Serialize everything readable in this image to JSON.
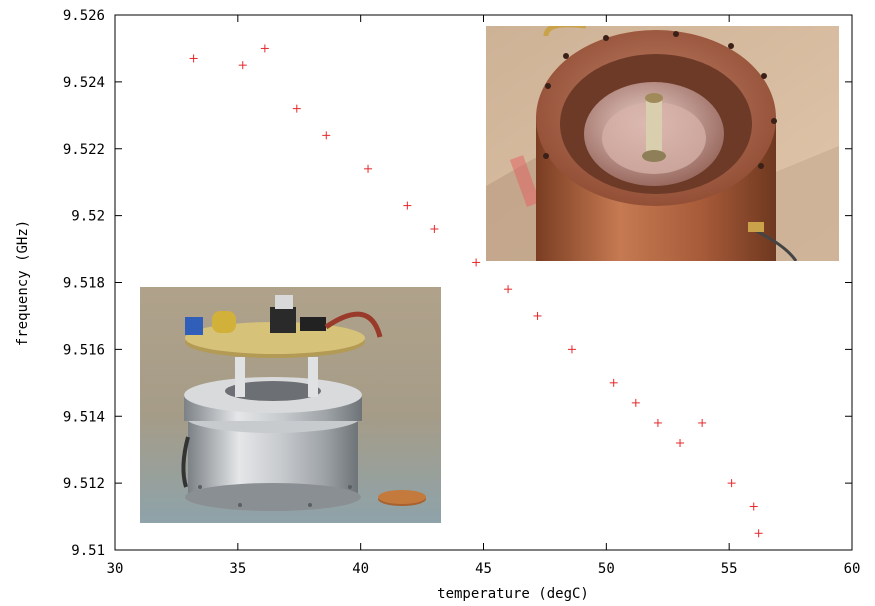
{
  "chart_data": {
    "type": "scatter",
    "title": "",
    "xlabel": "temperature (degC)",
    "ylabel": "frequency (GHz)",
    "xlim": [
      30,
      60
    ],
    "ylim": [
      9.51,
      9.526
    ],
    "x_ticks": [
      "30",
      "35",
      "40",
      "45",
      "50",
      "55",
      "60"
    ],
    "y_ticks": [
      "9.51",
      "9.512",
      "9.514",
      "9.516",
      "9.518",
      "9.52",
      "9.522",
      "9.524",
      "9.526"
    ],
    "marker": "+",
    "marker_color": "#e8262a",
    "grid": false,
    "points": [
      {
        "x": 33.2,
        "y": 9.5247
      },
      {
        "x": 35.2,
        "y": 9.5245
      },
      {
        "x": 36.1,
        "y": 9.525
      },
      {
        "x": 37.4,
        "y": 9.5232
      },
      {
        "x": 38.6,
        "y": 9.5224
      },
      {
        "x": 40.3,
        "y": 9.5214
      },
      {
        "x": 41.9,
        "y": 9.5203
      },
      {
        "x": 43.0,
        "y": 9.5196
      },
      {
        "x": 44.7,
        "y": 9.5186
      },
      {
        "x": 46.0,
        "y": 9.5178
      },
      {
        "x": 47.2,
        "y": 9.517
      },
      {
        "x": 48.6,
        "y": 9.516
      },
      {
        "x": 50.3,
        "y": 9.515
      },
      {
        "x": 51.2,
        "y": 9.5144
      },
      {
        "x": 52.1,
        "y": 9.5138
      },
      {
        "x": 53.0,
        "y": 9.5132
      },
      {
        "x": 53.9,
        "y": 9.5138
      },
      {
        "x": 55.1,
        "y": 9.512
      },
      {
        "x": 56.0,
        "y": 9.5113
      },
      {
        "x": 56.2,
        "y": 9.5105
      }
    ]
  },
  "photos": [
    {
      "name": "copper-resonator-cavity-photo",
      "background": "#d7b89d",
      "accent": "#b56a45"
    },
    {
      "name": "oscillator-assembly-photo",
      "background": "#a99e86",
      "accent": "#cfd2d5"
    }
  ]
}
